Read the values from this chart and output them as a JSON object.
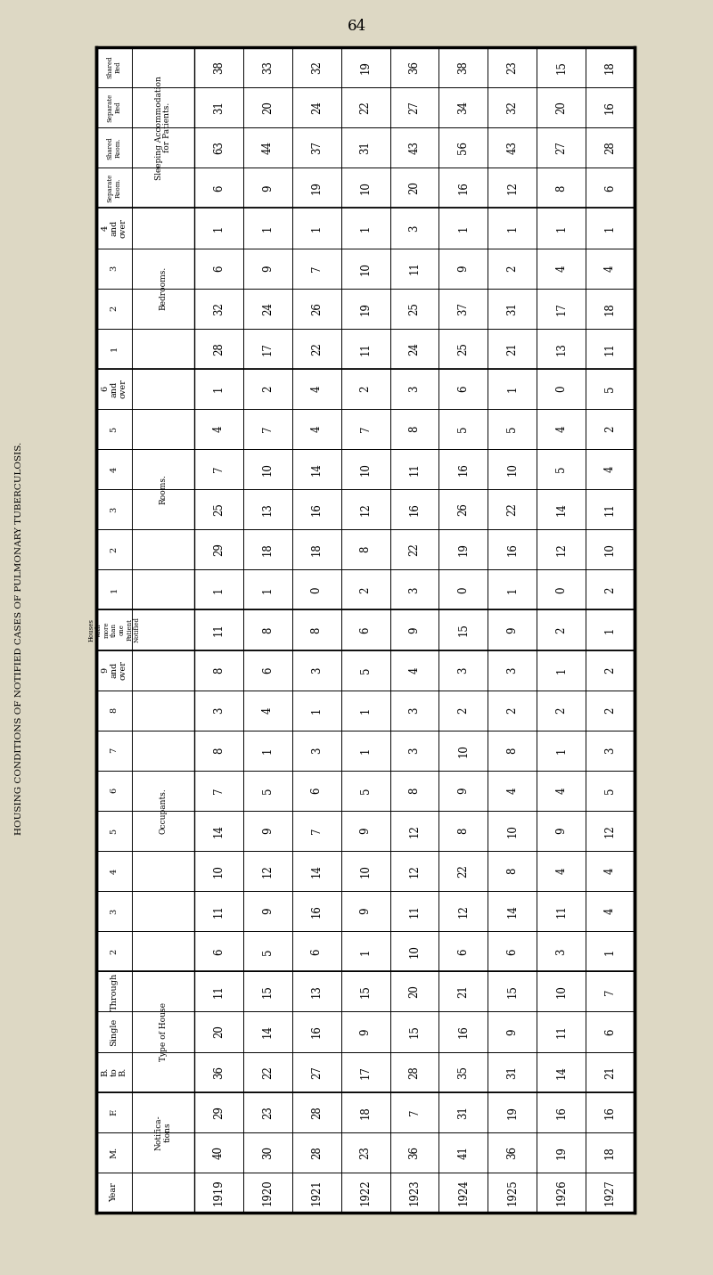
{
  "page_number": "64",
  "title": "HOUSING CONDITIONS OF NOTIFIED CASES OF PULMONARY TUBERCULOSIS.",
  "bg_color": "#ddd8c4",
  "years": [
    "1919",
    "1920",
    "1921",
    "1922",
    "1923",
    "1924",
    "1925",
    "1926",
    "1927"
  ],
  "notifications": {
    "M": [
      40,
      30,
      28,
      23,
      36,
      41,
      36,
      19,
      18
    ],
    "F": [
      29,
      23,
      28,
      18,
      7,
      31,
      19,
      16,
      16
    ]
  },
  "type_of_house": {
    "BtoB": [
      36,
      22,
      27,
      17,
      28,
      35,
      31,
      14,
      21
    ],
    "Single": [
      20,
      14,
      16,
      9,
      15,
      16,
      9,
      11,
      6
    ],
    "Through": [
      11,
      15,
      13,
      15,
      20,
      21,
      15,
      10,
      7
    ]
  },
  "occupants": {
    "2": [
      6,
      5,
      6,
      1,
      10,
      6,
      6,
      3,
      1
    ],
    "3": [
      11,
      9,
      16,
      9,
      11,
      12,
      14,
      11,
      4
    ],
    "4": [
      10,
      12,
      14,
      10,
      12,
      22,
      8,
      4,
      4
    ],
    "5": [
      14,
      9,
      7,
      9,
      12,
      8,
      10,
      9,
      12
    ],
    "6": [
      7,
      5,
      6,
      5,
      8,
      9,
      4,
      4,
      5
    ],
    "7": [
      8,
      1,
      3,
      1,
      3,
      10,
      8,
      1,
      3
    ],
    "8": [
      3,
      4,
      1,
      1,
      3,
      2,
      2,
      2,
      2
    ],
    "9andover": [
      8,
      6,
      3,
      5,
      4,
      3,
      3,
      1,
      2
    ]
  },
  "houses_more_than_one": [
    11,
    8,
    8,
    6,
    9,
    15,
    9,
    2,
    1
  ],
  "rooms": {
    "1": [
      1,
      1,
      0,
      2,
      3,
      0,
      1,
      0,
      2
    ],
    "2": [
      29,
      18,
      18,
      8,
      22,
      19,
      16,
      12,
      10
    ],
    "3": [
      25,
      13,
      16,
      12,
      16,
      26,
      22,
      14,
      11
    ],
    "4": [
      7,
      10,
      14,
      10,
      11,
      16,
      10,
      5,
      4
    ],
    "5": [
      4,
      7,
      4,
      7,
      8,
      5,
      5,
      4,
      2
    ],
    "6andover": [
      1,
      2,
      4,
      2,
      3,
      6,
      1,
      0,
      5
    ]
  },
  "bedrooms": {
    "1": [
      28,
      17,
      22,
      11,
      24,
      25,
      21,
      13,
      11
    ],
    "2": [
      32,
      24,
      26,
      19,
      25,
      37,
      31,
      17,
      18
    ],
    "3": [
      6,
      9,
      7,
      10,
      11,
      9,
      2,
      4,
      4
    ],
    "4andover": [
      1,
      1,
      1,
      1,
      3,
      1,
      1,
      1,
      1
    ]
  },
  "sleeping_accom": {
    "separate_room": [
      6,
      9,
      19,
      10,
      20,
      16,
      12,
      8,
      6
    ],
    "shared_room": [
      63,
      44,
      37,
      31,
      43,
      56,
      43,
      27,
      28
    ],
    "separate_bed": [
      31,
      20,
      24,
      22,
      27,
      34,
      32,
      20,
      16
    ],
    "shared_bed": [
      38,
      33,
      32,
      19,
      36,
      38,
      23,
      15,
      18
    ]
  }
}
